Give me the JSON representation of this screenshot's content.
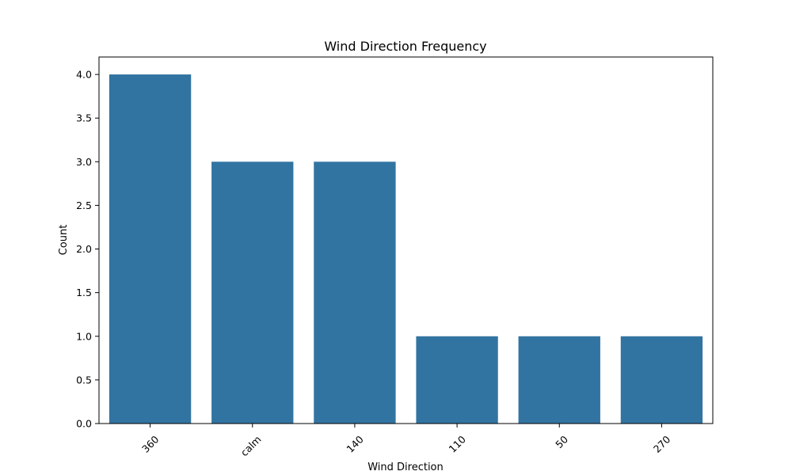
{
  "chart_data": {
    "type": "bar",
    "title": "Wind Direction Frequency",
    "xlabel": "Wind Direction",
    "ylabel": "Count",
    "categories": [
      "360",
      "calm",
      "140",
      "110",
      "50",
      "270"
    ],
    "values": [
      4,
      3,
      3,
      1,
      1,
      1
    ],
    "ylim": [
      0,
      4.2
    ],
    "yticks": [
      0.0,
      0.5,
      1.0,
      1.5,
      2.0,
      2.5,
      3.0,
      3.5,
      4.0
    ],
    "xtick_rotation": 45,
    "bar_color": "#3274a1",
    "grid": false,
    "legend": "none"
  }
}
